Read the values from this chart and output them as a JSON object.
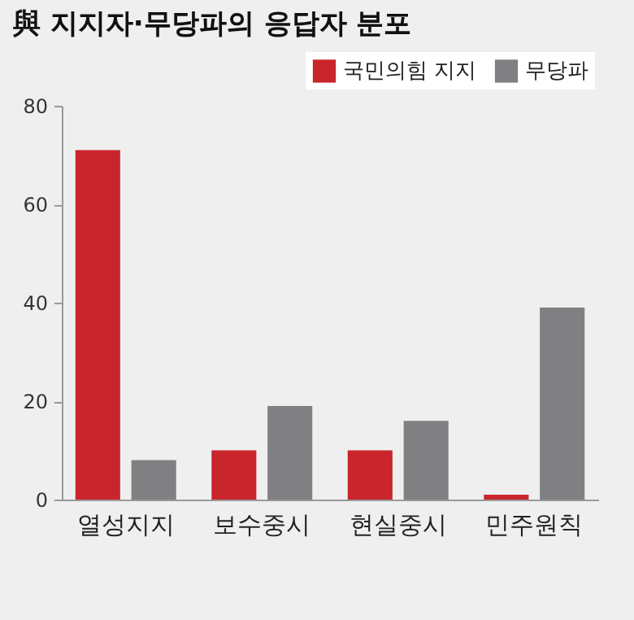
{
  "chart_data": {
    "type": "bar",
    "title": "與 지지자·무당파의 응답자 분포",
    "categories": [
      "열성지지",
      "보수중시",
      "현실중시",
      "민주원칙"
    ],
    "series": [
      {
        "name": "국민의힘 지지",
        "color": "#c9252c",
        "values": [
          71,
          10,
          10,
          1
        ]
      },
      {
        "name": "무당파",
        "color": "#808083",
        "values": [
          8,
          19,
          16,
          39
        ]
      }
    ],
    "ylim": [
      0,
      80
    ],
    "yticks": [
      0,
      20,
      40,
      60,
      80
    ],
    "grid": false,
    "legend": "top right"
  }
}
